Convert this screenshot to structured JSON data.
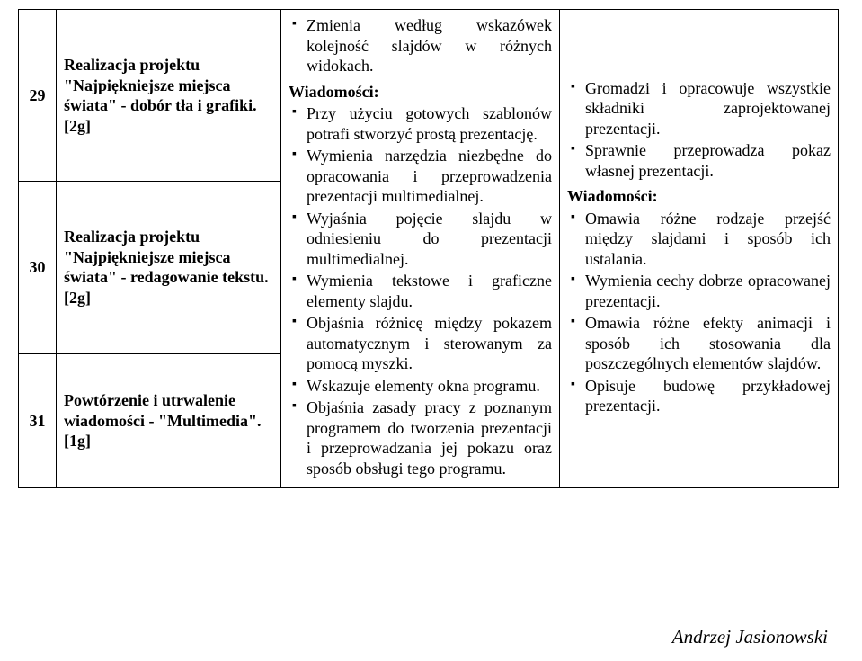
{
  "rows": [
    {
      "num": "29",
      "topic_line1": "Realizacja projektu",
      "topic_line2": "\"Najpiękniejsze miejsca świata\" - dobór tła i grafiki.",
      "tag": "[2g]"
    },
    {
      "num": "30",
      "topic_line1": "Realizacja projektu",
      "topic_line2": "\"Najpiękniejsze miejsca świata\" - redagowanie tekstu.",
      "tag": "[2g]"
    },
    {
      "num": "31",
      "topic_line1": "Powtórzenie i utrwalenie wiadomości - \"Multimedia\".",
      "topic_line2": "",
      "tag": "[1g]"
    }
  ],
  "col3": {
    "lead_item": "Zmienia według wskazówek kolejność slajdów w różnych widokach.",
    "heading": "Wiadomości:",
    "items": [
      "Przy użyciu gotowych szablonów potrafi stworzyć prostą prezentację.",
      "Wymienia narzędzia niezbędne do opracowania i przeprowadzenia prezentacji multimedialnej.",
      "Wyjaśnia pojęcie slajdu w odniesieniu do prezentacji multimedialnej.",
      "Wymienia tekstowe i graficzne elementy slajdu.",
      "Objaśnia różnicę między pokazem automatycznym i sterowanym za pomocą myszki.",
      "Wskazuje elementy okna programu.",
      "Objaśnia zasady pracy z poznanym programem do tworzenia prezentacji i przeprowadzania jej pokazu oraz sposób obsługi tego programu."
    ]
  },
  "col4": {
    "lead_items": [
      "Gromadzi i opracowuje wszystkie składniki zaprojektowanej prezentacji.",
      "Sprawnie przeprowadza pokaz własnej prezentacji."
    ],
    "heading": "Wiadomości:",
    "items": [
      "Omawia różne rodzaje przejść między slajdami i sposób ich ustalania.",
      "Wymienia cechy dobrze opracowanej prezentacji.",
      "Omawia różne efekty animacji i sposób ich stosowania dla poszczególnych elementów slajdów.",
      "Opisuje budowę przykładowej prezentacji."
    ]
  },
  "footer": "Andrzej Jasionowski"
}
